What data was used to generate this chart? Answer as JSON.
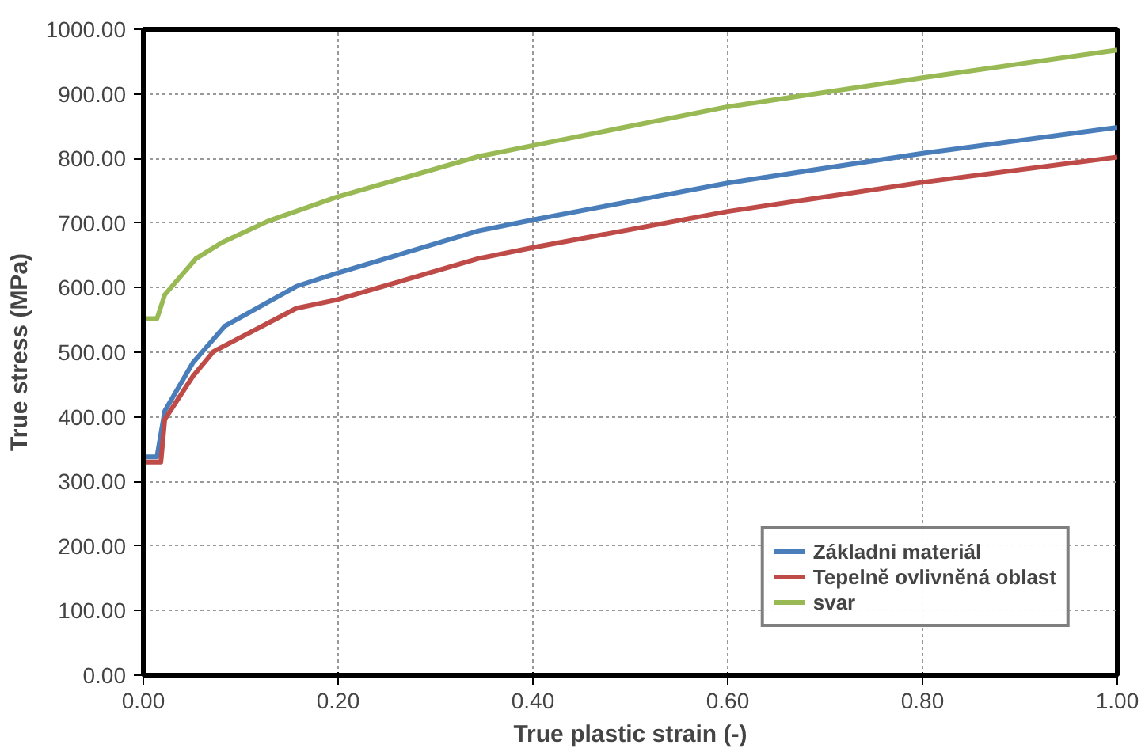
{
  "chart_data": {
    "type": "line",
    "xlabel": "True plastic strain (-)",
    "ylabel": "True stress (MPa)",
    "xlim": [
      0,
      1
    ],
    "ylim": [
      0,
      1000
    ],
    "xticks": [
      {
        "value": 0,
        "label": "0.00"
      },
      {
        "value": 0.2,
        "label": "0.20"
      },
      {
        "value": 0.4,
        "label": "0.40"
      },
      {
        "value": 0.6,
        "label": "0.60"
      },
      {
        "value": 0.8,
        "label": "0.80"
      },
      {
        "value": 1,
        "label": "1.00"
      }
    ],
    "yticks": [
      {
        "value": 0,
        "label": "0.00"
      },
      {
        "value": 100,
        "label": "100.00"
      },
      {
        "value": 200,
        "label": "200.00"
      },
      {
        "value": 300,
        "label": "300.00"
      },
      {
        "value": 400,
        "label": "400.00"
      },
      {
        "value": 500,
        "label": "500.00"
      },
      {
        "value": 600,
        "label": "600.00"
      },
      {
        "value": 700,
        "label": "700.00"
      },
      {
        "value": 800,
        "label": "800.00"
      },
      {
        "value": 900,
        "label": "900.00"
      },
      {
        "value": 1000,
        "label": "1000.00"
      }
    ],
    "grid": true,
    "legend": "bottom right",
    "marker": "none",
    "line_style": "solid",
    "series": [
      {
        "name": "Základni materiál",
        "color": "#4a7ebb",
        "x": [
          0,
          0.014,
          0.022,
          0.051,
          0.084,
          0.157,
          0.198,
          0.344,
          0.4,
          0.6,
          0.8,
          1.0
        ],
        "values": [
          338,
          338,
          409,
          484,
          541,
          602,
          622,
          688,
          705,
          762,
          808,
          848
        ]
      },
      {
        "name": "Tepelně ovlivněná oblast",
        "color": "#be4b48",
        "x": [
          0,
          0.018,
          0.022,
          0.051,
          0.072,
          0.157,
          0.198,
          0.344,
          0.4,
          0.6,
          0.8,
          1.0
        ],
        "values": [
          330,
          330,
          396,
          463,
          501,
          568,
          581,
          645,
          662,
          718,
          763,
          802
        ]
      },
      {
        "name": "svar",
        "color": "#98b954",
        "x": [
          0,
          0.014,
          0.022,
          0.054,
          0.081,
          0.128,
          0.198,
          0.344,
          0.4,
          0.6,
          0.8,
          1.0
        ],
        "values": [
          552,
          552,
          589,
          645,
          670,
          703,
          740,
          803,
          820,
          880,
          925,
          968
        ]
      }
    ]
  }
}
